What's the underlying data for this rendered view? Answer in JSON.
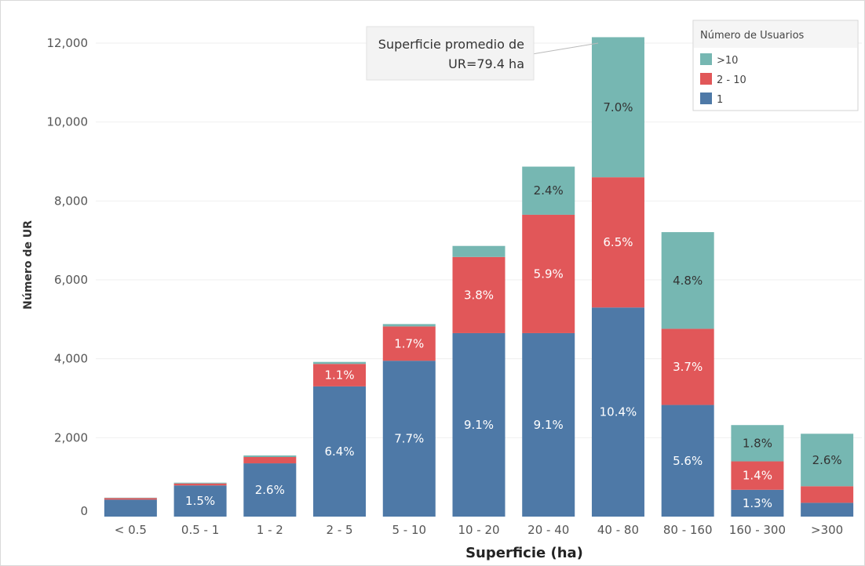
{
  "chart_data": {
    "type": "bar",
    "stacked": true,
    "title": "",
    "xlabel": "Superficie (ha)",
    "ylabel": "Número de UR",
    "ylim": [
      0,
      12000
    ],
    "yticks": [
      0,
      2000,
      4000,
      6000,
      8000,
      10000,
      12000
    ],
    "ytick_labels": [
      "0",
      "2,000",
      "4,000",
      "6,000",
      "8,000",
      "10,000",
      "12,000"
    ],
    "grid": true,
    "categories": [
      "< 0.5",
      "0.5 - 1",
      "1 - 2",
      "2 - 5",
      "5 - 10",
      "10 - 20",
      "20 - 40",
      "40 - 80",
      "80 - 160",
      "160 - 300",
      ">300"
    ],
    "legend": {
      "title": "Número de Usuarios",
      "placement": "top-right",
      "entries": [
        {
          "name": ">10",
          "color": "#76b7b2"
        },
        {
          "name": "2 - 10",
          "color": "#e15759"
        },
        {
          "name": "1",
          "color": "#4e79a7"
        }
      ]
    },
    "series": [
      {
        "name": "1",
        "color": "#4e79a7",
        "values": [
          430,
          790,
          1350,
          3300,
          3950,
          4650,
          4650,
          5300,
          2830,
          680,
          350
        ],
        "labels": [
          "",
          "1.5%",
          "2.6%",
          "6.4%",
          "7.7%",
          "9.1%",
          "9.1%",
          "10.4%",
          "5.6%",
          "1.3%",
          ""
        ]
      },
      {
        "name": "2 - 10",
        "color": "#e15759",
        "values": [
          40,
          50,
          160,
          570,
          870,
          1930,
          3000,
          3300,
          1930,
          720,
          420
        ],
        "labels": [
          "",
          "",
          "",
          "1.1%",
          "1.7%",
          "3.8%",
          "5.9%",
          "6.5%",
          "3.7%",
          "1.4%",
          ""
        ]
      },
      {
        "name": ">10",
        "color": "#76b7b2",
        "values": [
          10,
          20,
          40,
          50,
          60,
          280,
          1220,
          3550,
          2450,
          920,
          1330
        ],
        "labels": [
          "",
          "",
          "",
          "",
          "",
          "",
          "2.4%",
          "7.0%",
          "4.8%",
          "1.8%",
          "2.6%"
        ]
      }
    ],
    "annotation": {
      "line1": "Superficie promedio de",
      "line2": "UR=79.4 ha",
      "target_category": "40 - 80"
    }
  }
}
